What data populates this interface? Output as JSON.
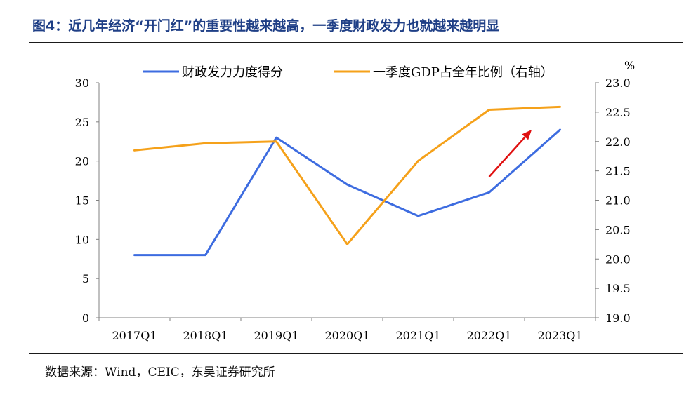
{
  "figure": {
    "title": "图4：近几年经济“开门红”的重要性越来越高，一季度财政发力也就越来越明显",
    "source": "数据来源：Wind，CEIC，东吴证券研究所"
  },
  "chart_data": {
    "type": "line",
    "categories": [
      "2017Q1",
      "2018Q1",
      "2019Q1",
      "2020Q1",
      "2021Q1",
      "2022Q1",
      "2023Q1"
    ],
    "series": [
      {
        "name": "财政发力力度得分",
        "axis": "left",
        "color": "#3d6ce0",
        "values": [
          8,
          8,
          23,
          17,
          13,
          16,
          24
        ]
      },
      {
        "name": "一季度GDP占全年比例（右轴）",
        "axis": "right",
        "color": "#f5a11a",
        "values": [
          21.85,
          21.97,
          22.0,
          20.25,
          21.67,
          22.54,
          22.59
        ]
      }
    ],
    "y_left": {
      "min": 0,
      "max": 30,
      "ticks": [
        "0",
        "5",
        "10",
        "15",
        "20",
        "25",
        "30"
      ]
    },
    "y_right": {
      "min": 19.0,
      "max": 23.0,
      "unit": "%",
      "ticks": [
        "19.0",
        "19.5",
        "20.0",
        "20.5",
        "21.0",
        "21.5",
        "22.0",
        "22.5",
        "23.0"
      ]
    },
    "legend_position": "top",
    "grid": false,
    "annotation": {
      "type": "arrow",
      "color": "#e01010",
      "from": {
        "x": 5.0,
        "y_right": 21.4
      },
      "to": {
        "x": 5.6,
        "y_right": 22.2
      }
    }
  }
}
